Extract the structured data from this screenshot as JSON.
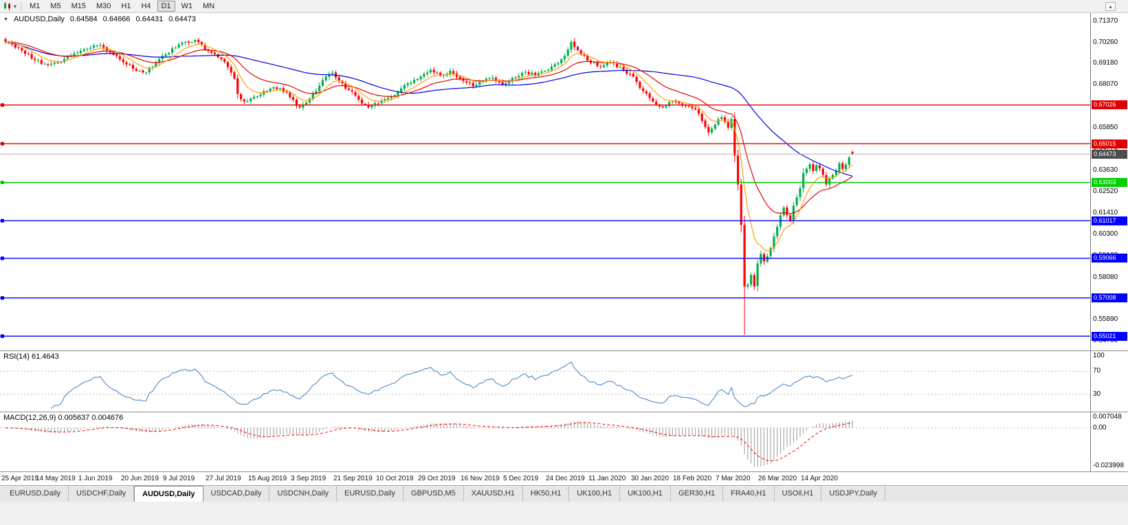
{
  "toolbar": {
    "timeframes": [
      "M1",
      "M5",
      "M15",
      "M30",
      "H1",
      "H4",
      "D1",
      "W1",
      "MN"
    ],
    "active_timeframe": "D1"
  },
  "chart_header": {
    "symbol": "AUDUSD,Daily",
    "open": "0.64584",
    "high": "0.64666",
    "low": "0.64431",
    "close": "0.64473"
  },
  "rsi_panel": {
    "label": "RSI(14) 61.4643"
  },
  "macd_panel": {
    "label": "MACD(12,26,9) 0.005637 0.004676"
  },
  "tabs": {
    "items": [
      "EURUSD,Daily",
      "USDCHF,Daily",
      "AUDUSD,Daily",
      "USDCAD,Daily",
      "USDCNH,Daily",
      "EURUSD,Daily",
      "GBPUSD,M5",
      "XAUUSD,H1",
      "HK50,H1",
      "UK100,H1",
      "UK100,H1",
      "GER30,H1",
      "FRA40,H1",
      "USOil,H1",
      "USDJPY,Daily"
    ],
    "active_index": 2
  },
  "colors": {
    "candle_up": "#00B050",
    "candle_down": "#FF0000",
    "ma_fast": "#FFA000",
    "ma_mid": "#E60000",
    "ma_slow": "#0000E0",
    "rsi_line": "#4B89C8",
    "macd_hist": "#9A9A9A",
    "macd_signal": "#FF0000",
    "level_red": "#E00000",
    "level_green": "#00D000",
    "level_blue": "#0000FF",
    "current_price_line": "#B4B4B4",
    "current_price_tag_bg": "#4D4D4D"
  },
  "chart_data": {
    "type": "candlestick",
    "symbol": "AUDUSD",
    "timeframe": "Daily",
    "title": "AUDUSD,Daily 0.64584 0.64666 0.64431 0.64473",
    "last_candle": {
      "open": 0.64584,
      "high": 0.64666,
      "low": 0.64431,
      "close": 0.64473
    },
    "num_candles": 260,
    "price_anchors": [
      [
        0,
        0.703
      ],
      [
        3,
        0.7
      ],
      [
        5,
        0.6985
      ],
      [
        9,
        0.6935
      ],
      [
        13,
        0.691
      ],
      [
        17,
        0.6925
      ],
      [
        21,
        0.697
      ],
      [
        26,
        0.7
      ],
      [
        29,
        0.7015
      ],
      [
        32,
        0.6975
      ],
      [
        36,
        0.6925
      ],
      [
        39,
        0.689
      ],
      [
        43,
        0.687
      ],
      [
        46,
        0.692
      ],
      [
        49,
        0.6965
      ],
      [
        52,
        0.7
      ],
      [
        55,
        0.703
      ],
      [
        58,
        0.704
      ],
      [
        61,
        0.699
      ],
      [
        65,
        0.695
      ],
      [
        68,
        0.69
      ],
      [
        70,
        0.684
      ],
      [
        71,
        0.676
      ],
      [
        73,
        0.672
      ],
      [
        76,
        0.6745
      ],
      [
        79,
        0.6775
      ],
      [
        82,
        0.6795
      ],
      [
        86,
        0.677
      ],
      [
        88,
        0.673
      ],
      [
        90,
        0.669
      ],
      [
        92,
        0.6715
      ],
      [
        95,
        0.6775
      ],
      [
        98,
        0.685
      ],
      [
        100,
        0.687
      ],
      [
        102,
        0.683
      ],
      [
        105,
        0.678
      ],
      [
        108,
        0.673
      ],
      [
        111,
        0.669
      ],
      [
        114,
        0.671
      ],
      [
        117,
        0.674
      ],
      [
        120,
        0.677
      ],
      [
        123,
        0.6815
      ],
      [
        127,
        0.685
      ],
      [
        130,
        0.6885
      ],
      [
        133,
        0.6855
      ],
      [
        136,
        0.688
      ],
      [
        139,
        0.684
      ],
      [
        143,
        0.68
      ],
      [
        146,
        0.6825
      ],
      [
        149,
        0.6845
      ],
      [
        152,
        0.681
      ],
      [
        156,
        0.6845
      ],
      [
        159,
        0.6875
      ],
      [
        162,
        0.6855
      ],
      [
        165,
        0.688
      ],
      [
        169,
        0.692
      ],
      [
        172,
        0.699
      ],
      [
        173,
        0.703
      ],
      [
        176,
        0.6965
      ],
      [
        179,
        0.692
      ],
      [
        182,
        0.69
      ],
      [
        185,
        0.6925
      ],
      [
        189,
        0.688
      ],
      [
        192,
        0.685
      ],
      [
        195,
        0.6775
      ],
      [
        198,
        0.672
      ],
      [
        201,
        0.669
      ],
      [
        204,
        0.672
      ],
      [
        208,
        0.67
      ],
      [
        211,
        0.668
      ],
      [
        213,
        0.662
      ],
      [
        215,
        0.656
      ],
      [
        217,
        0.66
      ],
      [
        219,
        0.664
      ],
      [
        221,
        0.6585
      ],
      [
        222,
        0.663
      ],
      [
        223,
        0.644
      ],
      [
        224,
        0.629
      ],
      [
        225,
        0.608
      ],
      [
        226,
        0.576
      ],
      [
        227,
        0.577
      ],
      [
        228,
        0.582
      ],
      [
        229,
        0.576
      ],
      [
        230,
        0.588
      ],
      [
        231,
        0.593
      ],
      [
        232,
        0.589
      ],
      [
        234,
        0.596
      ],
      [
        235,
        0.602
      ],
      [
        237,
        0.613
      ],
      [
        238,
        0.617
      ],
      [
        240,
        0.61
      ],
      [
        241,
        0.618
      ],
      [
        243,
        0.627
      ],
      [
        244,
        0.635
      ],
      [
        246,
        0.6395
      ],
      [
        247,
        0.636
      ],
      [
        248,
        0.639
      ],
      [
        250,
        0.634
      ],
      [
        251,
        0.629
      ],
      [
        252,
        0.632
      ],
      [
        254,
        0.636
      ],
      [
        255,
        0.64
      ],
      [
        256,
        0.637
      ],
      [
        258,
        0.643
      ],
      [
        259,
        0.64473
      ]
    ],
    "wick_overrides": [
      {
        "index": 226,
        "low": 0.551
      }
    ],
    "y_axis": {
      "max": 0.7137,
      "min": 0.5478,
      "ticks": [
        "0.71370",
        "0.70260",
        "0.69180",
        "0.68070",
        "0.66990",
        "0.65850",
        "0.64770",
        "0.63630",
        "0.62520",
        "0.61410",
        "0.60300",
        "0.59190",
        "0.58080",
        "0.56970",
        "0.55890",
        "0.54780"
      ]
    },
    "x_labels": [
      "25 Apr 2019",
      "14 May 2019",
      "1 Jun 2019",
      "20 Jun 2019",
      "9 Jul 2019",
      "27 Jul 2019",
      "15 Aug 2019",
      "3 Sep 2019",
      "21 Sep 2019",
      "10 Oct 2019",
      "29 Oct 2019",
      "16 Nov 2019",
      "5 Dec 2019",
      "24 Dec 2019",
      "11 Jan 2020",
      "30 Jan 2020",
      "18 Feb 2020",
      "7 Mar 2020",
      "26 Mar 2020",
      "14 Apr 2020"
    ],
    "x_label_step": 13,
    "levels": [
      {
        "value": 0.67026,
        "label": "0.67026",
        "color_key": "level_red"
      },
      {
        "value": 0.65015,
        "label": "0.65015",
        "color_key": "level_red"
      },
      {
        "value": 0.63003,
        "label": "0.63003",
        "color_key": "level_green"
      },
      {
        "value": 0.61017,
        "label": "0.61017",
        "color_key": "level_blue"
      },
      {
        "value": 0.59066,
        "label": "0.59066",
        "color_key": "level_blue"
      },
      {
        "value": 0.57008,
        "label": "0.57008",
        "color_key": "level_blue"
      },
      {
        "value": 0.55021,
        "label": "0.55021",
        "color_key": "level_blue"
      }
    ],
    "current_price": {
      "value": 0.64473,
      "label": "0.64473"
    },
    "moving_averages": [
      {
        "method": "sma",
        "period": 55,
        "color_key": "ma_slow"
      },
      {
        "method": "ema",
        "period": 21,
        "color_key": "ma_mid"
      },
      {
        "method": "ema",
        "period": 8,
        "color_key": "ma_fast"
      }
    ],
    "rsi": {
      "period": 14,
      "current": 61.4643,
      "levels": [
        100,
        70,
        30
      ],
      "axis_labels": [
        "100",
        "70",
        "30"
      ]
    },
    "macd": {
      "fast": 12,
      "slow": 26,
      "signal": 9,
      "current_main": 0.005637,
      "current_signal": 0.004676,
      "max": 0.007048,
      "min": -0.023998,
      "axis_labels": [
        "0.007048",
        "0.00",
        "-0.023998"
      ]
    }
  }
}
